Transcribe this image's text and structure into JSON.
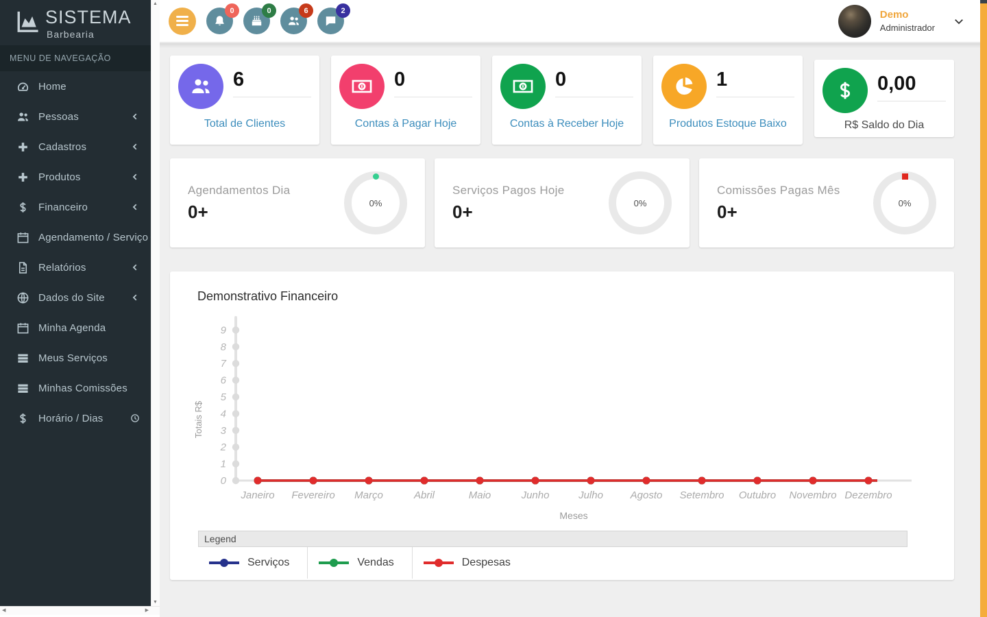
{
  "sidebar": {
    "logo": {
      "title": "SISTEMA",
      "subtitle": "Barbearia"
    },
    "menu_header": "MENU DE NAVEGAÇÃO",
    "items": [
      {
        "label": "Home",
        "icon": "tachometer",
        "chevron": false
      },
      {
        "label": "Pessoas",
        "icon": "users",
        "chevron": true
      },
      {
        "label": "Cadastros",
        "icon": "plus",
        "chevron": true
      },
      {
        "label": "Produtos",
        "icon": "plus",
        "chevron": true
      },
      {
        "label": "Financeiro",
        "icon": "dollar",
        "chevron": true
      },
      {
        "label": "Agendamento / Serviço",
        "icon": "calendar",
        "chevron": true
      },
      {
        "label": "Relatórios",
        "icon": "file-pdf",
        "chevron": true
      },
      {
        "label": "Dados do Site",
        "icon": "globe",
        "chevron": true
      },
      {
        "label": "Minha Agenda",
        "icon": "calendar",
        "chevron": false
      },
      {
        "label": "Meus Serviços",
        "icon": "list",
        "chevron": false
      },
      {
        "label": "Minhas Comissões",
        "icon": "list",
        "chevron": false
      },
      {
        "label": "Horário / Dias",
        "icon": "dollar",
        "chevron": false,
        "right_icon": "clock"
      }
    ]
  },
  "topbar": {
    "notifications": [
      {
        "name": "alerts",
        "icon": "bell",
        "badge": "0",
        "badge_color": "#ef655a",
        "circle_color": "#5f8d9d"
      },
      {
        "name": "birthdays",
        "icon": "cake",
        "badge": "0",
        "badge_color": "#2e7d46",
        "circle_color": "#5f8d9d"
      },
      {
        "name": "clients",
        "icon": "users",
        "badge": "6",
        "badge_color": "#c63a1a",
        "circle_color": "#5f8d9d"
      },
      {
        "name": "messages",
        "icon": "comment",
        "badge": "2",
        "badge_color": "#38309f",
        "circle_color": "#5f8d9d"
      }
    ],
    "user": {
      "name": "Demo",
      "role": "Administrador"
    }
  },
  "stat_cards": [
    {
      "value": "6",
      "label": "Total de Clientes",
      "icon": "users",
      "color": "#7568ea",
      "link": true
    },
    {
      "value": "0",
      "label": "Contas à Pagar Hoje",
      "icon": "money",
      "color": "#f23f6d",
      "link": true
    },
    {
      "value": "0",
      "label": "Contas à Receber Hoje",
      "icon": "money",
      "color": "#10a34e",
      "link": true
    },
    {
      "value": "1",
      "label": "Produtos Estoque Baixo",
      "icon": "pie",
      "color": "#f7a727",
      "link": true
    },
    {
      "value": "0,00",
      "label": "R$ Saldo do Dia",
      "icon": "dollar",
      "color": "#10a34e",
      "link": false
    }
  ],
  "progress_cards": [
    {
      "title": "Agendamentos Dia",
      "count": "0+",
      "percent": "0%",
      "marker_shape": "circle",
      "marker_color": "#35cf90"
    },
    {
      "title": "Serviços Pagos Hoje",
      "count": "0+",
      "percent": "0%",
      "marker_shape": "none",
      "marker_color": ""
    },
    {
      "title": "Comissões Pagas Mês",
      "count": "0+",
      "percent": "0%",
      "marker_shape": "square",
      "marker_color": "#e0281e"
    }
  ],
  "chart_data": {
    "type": "line",
    "title": "Demonstrativo Financeiro",
    "xlabel": "Meses",
    "ylabel": "Totais R$",
    "legend_title": "Legend",
    "legend_position": "bottom",
    "grid": false,
    "ylim": [
      0,
      9
    ],
    "yticks": [
      0,
      1,
      2,
      3,
      4,
      5,
      6,
      7,
      8,
      9
    ],
    "categories": [
      "Janeiro",
      "Fevereiro",
      "Março",
      "Abril",
      "Maio",
      "Junho",
      "Julho",
      "Agosto",
      "Setembro",
      "Outubro",
      "Novembro",
      "Dezembro"
    ],
    "series": [
      {
        "name": "Serviços",
        "color": "#26328c",
        "values": [
          0,
          0,
          0,
          0,
          0,
          0,
          0,
          0,
          0,
          0,
          0,
          0
        ]
      },
      {
        "name": "Vendas",
        "color": "#1e9c4e",
        "values": [
          0,
          0,
          0,
          0,
          0,
          0,
          0,
          0,
          0,
          0,
          0,
          0
        ]
      },
      {
        "name": "Despesas",
        "color": "#e02c2c",
        "values": [
          0,
          0,
          0,
          0,
          0,
          0,
          0,
          0,
          0,
          0,
          0,
          0
        ]
      }
    ]
  }
}
